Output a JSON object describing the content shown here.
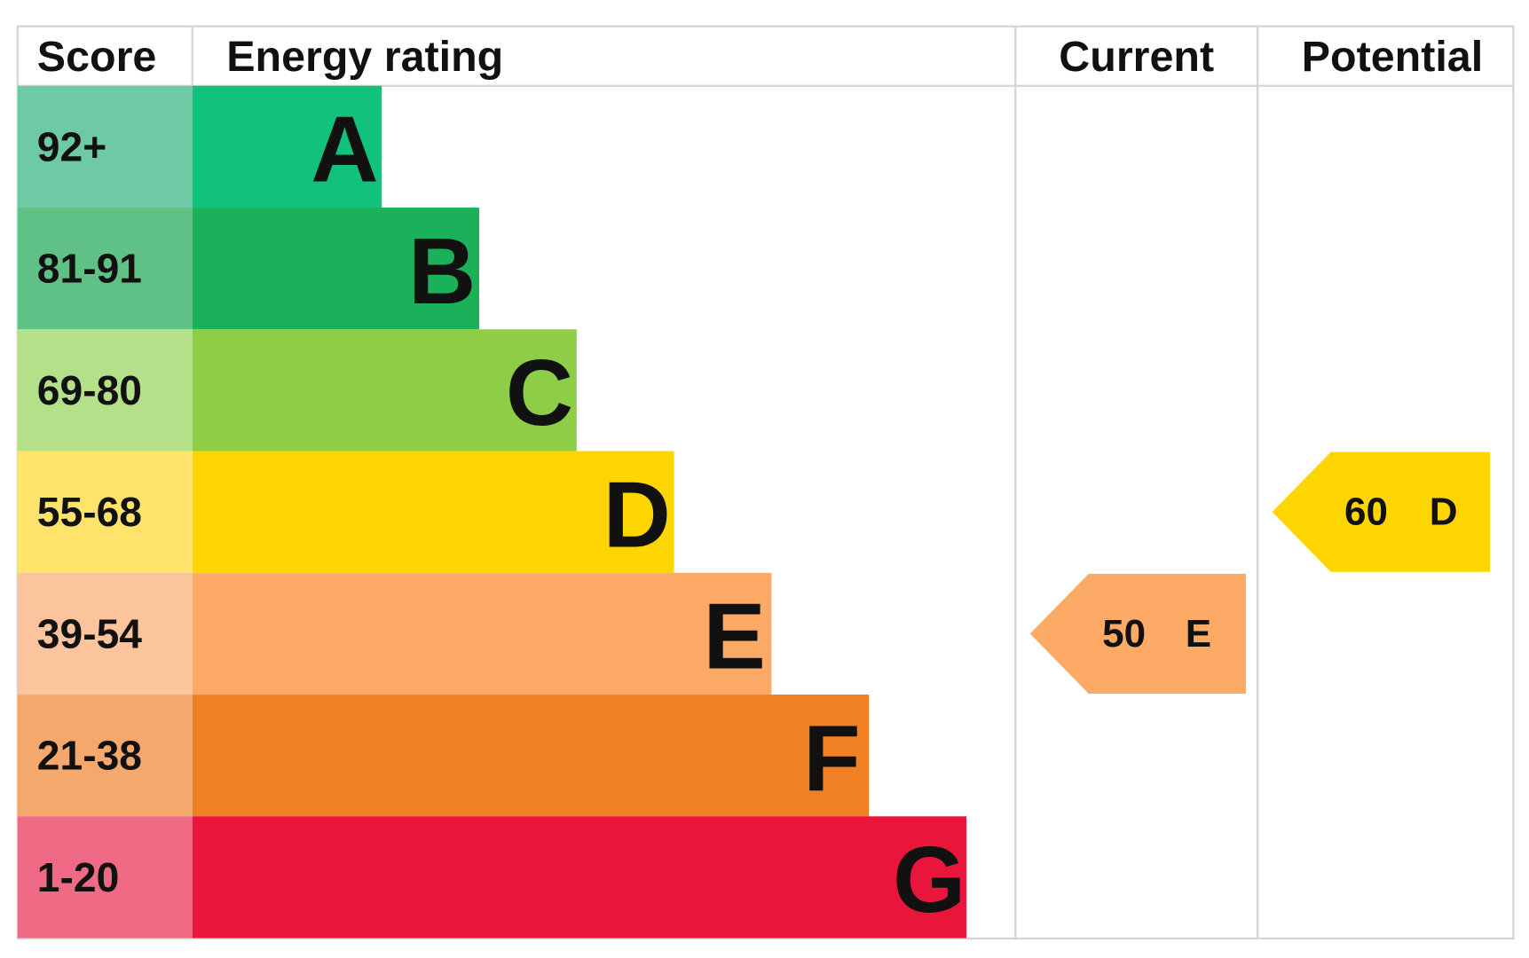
{
  "header": {
    "score": "Score",
    "energy_rating": "Energy rating",
    "current": "Current",
    "potential": "Potential"
  },
  "bands": [
    {
      "score": "92+",
      "rating": "A",
      "color": "#10c27c",
      "score_color": "#6dcaa5"
    },
    {
      "score": "81-91",
      "rating": "B",
      "color": "#1bb15b",
      "score_color": "#5fc185"
    },
    {
      "score": "69-80",
      "rating": "C",
      "color": "#8dce46",
      "score_color": "#b5e08a"
    },
    {
      "score": "55-68",
      "rating": "D",
      "color": "#ffd500",
      "score_color": "#ffe36a"
    },
    {
      "score": "39-54",
      "rating": "E",
      "color": "#fcaa65",
      "score_color": "#fcc49c"
    },
    {
      "score": "21-38",
      "rating": "F",
      "color": "#ef8023",
      "score_color": "#f4a86e"
    },
    {
      "score": "1-20",
      "rating": "G",
      "color": "#e9153b",
      "score_color": "#ef6a85"
    }
  ],
  "current": {
    "score": 50,
    "rating": "E"
  },
  "potential": {
    "score": 60,
    "rating": "D"
  }
}
